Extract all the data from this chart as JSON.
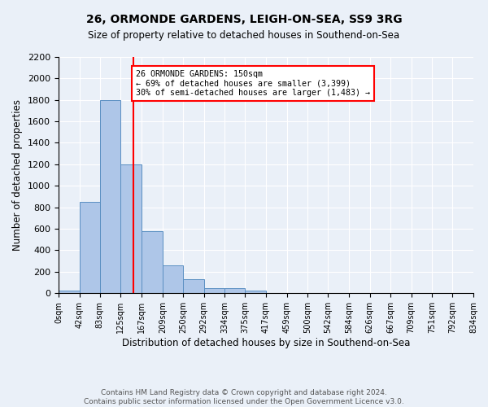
{
  "title1": "26, ORMONDE GARDENS, LEIGH-ON-SEA, SS9 3RG",
  "title2": "Size of property relative to detached houses in Southend-on-Sea",
  "xlabel": "Distribution of detached houses by size in Southend-on-Sea",
  "ylabel": "Number of detached properties",
  "bin_edges": [
    0,
    42,
    83,
    125,
    167,
    209,
    250,
    292,
    334,
    375,
    417,
    459,
    500,
    542,
    584,
    626,
    667,
    709,
    751,
    792,
    834
  ],
  "bar_heights": [
    25,
    850,
    1800,
    1200,
    580,
    255,
    130,
    45,
    45,
    25,
    0,
    0,
    0,
    0,
    0,
    0,
    0,
    0,
    0,
    0
  ],
  "bar_color": "#aec6e8",
  "bar_edge_color": "#5a8fc2",
  "vline_x": 150,
  "vline_color": "red",
  "annotation_text": "26 ORMONDE GARDENS: 150sqm\n← 69% of detached houses are smaller (3,399)\n30% of semi-detached houses are larger (1,483) →",
  "annotation_box_color": "white",
  "annotation_box_edge": "red",
  "ylim": [
    0,
    2200
  ],
  "yticks": [
    0,
    200,
    400,
    600,
    800,
    1000,
    1200,
    1400,
    1600,
    1800,
    2000,
    2200
  ],
  "tick_labels": [
    "0sqm",
    "42sqm",
    "83sqm",
    "125sqm",
    "167sqm",
    "209sqm",
    "250sqm",
    "292sqm",
    "334sqm",
    "375sqm",
    "417sqm",
    "459sqm",
    "500sqm",
    "542sqm",
    "584sqm",
    "626sqm",
    "667sqm",
    "709sqm",
    "751sqm",
    "792sqm",
    "834sqm"
  ],
  "footer1": "Contains HM Land Registry data © Crown copyright and database right 2024.",
  "footer2": "Contains public sector information licensed under the Open Government Licence v3.0.",
  "bg_color": "#eaf0f8",
  "fig_width": 6.0,
  "fig_height": 5.0,
  "dpi": 100
}
